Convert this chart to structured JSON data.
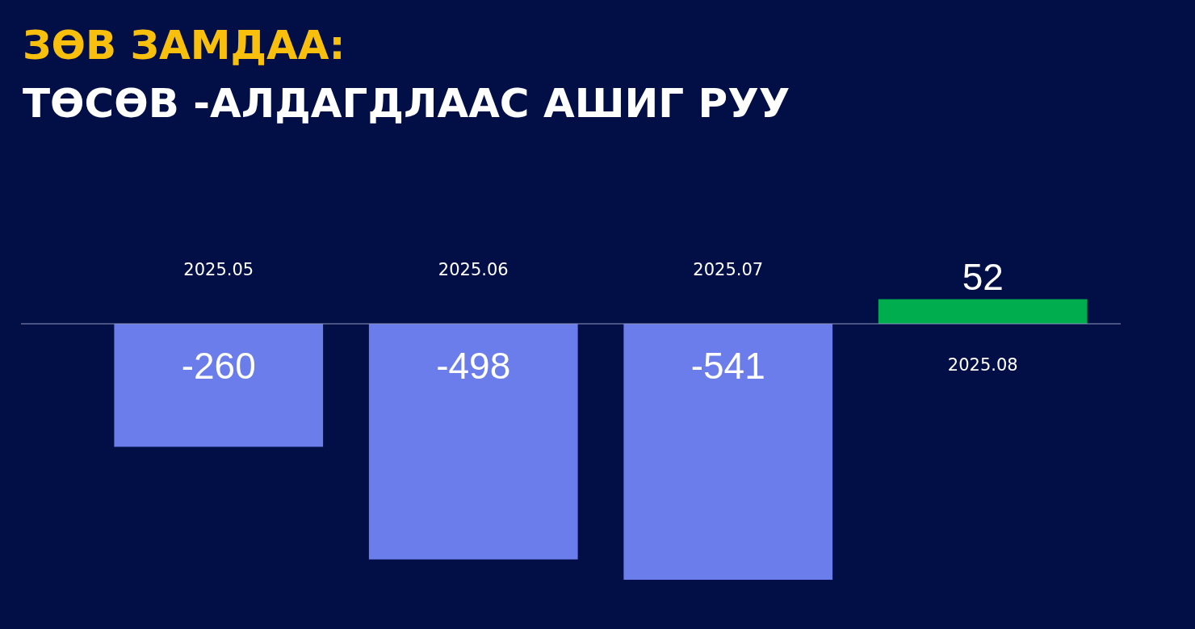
{
  "chart_data": {
    "type": "bar",
    "title": "ЗӨВ ЗАМДАА:",
    "subtitle": "ТӨСӨВ -АЛДАГДЛААС АШИГ РУУ",
    "categories": [
      "2025.05",
      "2025.06",
      "2025.07",
      "2025.08"
    ],
    "values": [
      -260,
      -498,
      -541,
      52
    ],
    "colors": [
      "#6a7deb",
      "#6a7deb",
      "#6a7deb",
      "#00ad4e"
    ],
    "ref_lines": [
      {
        "axis": "y",
        "value": 0,
        "color": "#8f98bf"
      }
    ],
    "data_labels": true
  }
}
